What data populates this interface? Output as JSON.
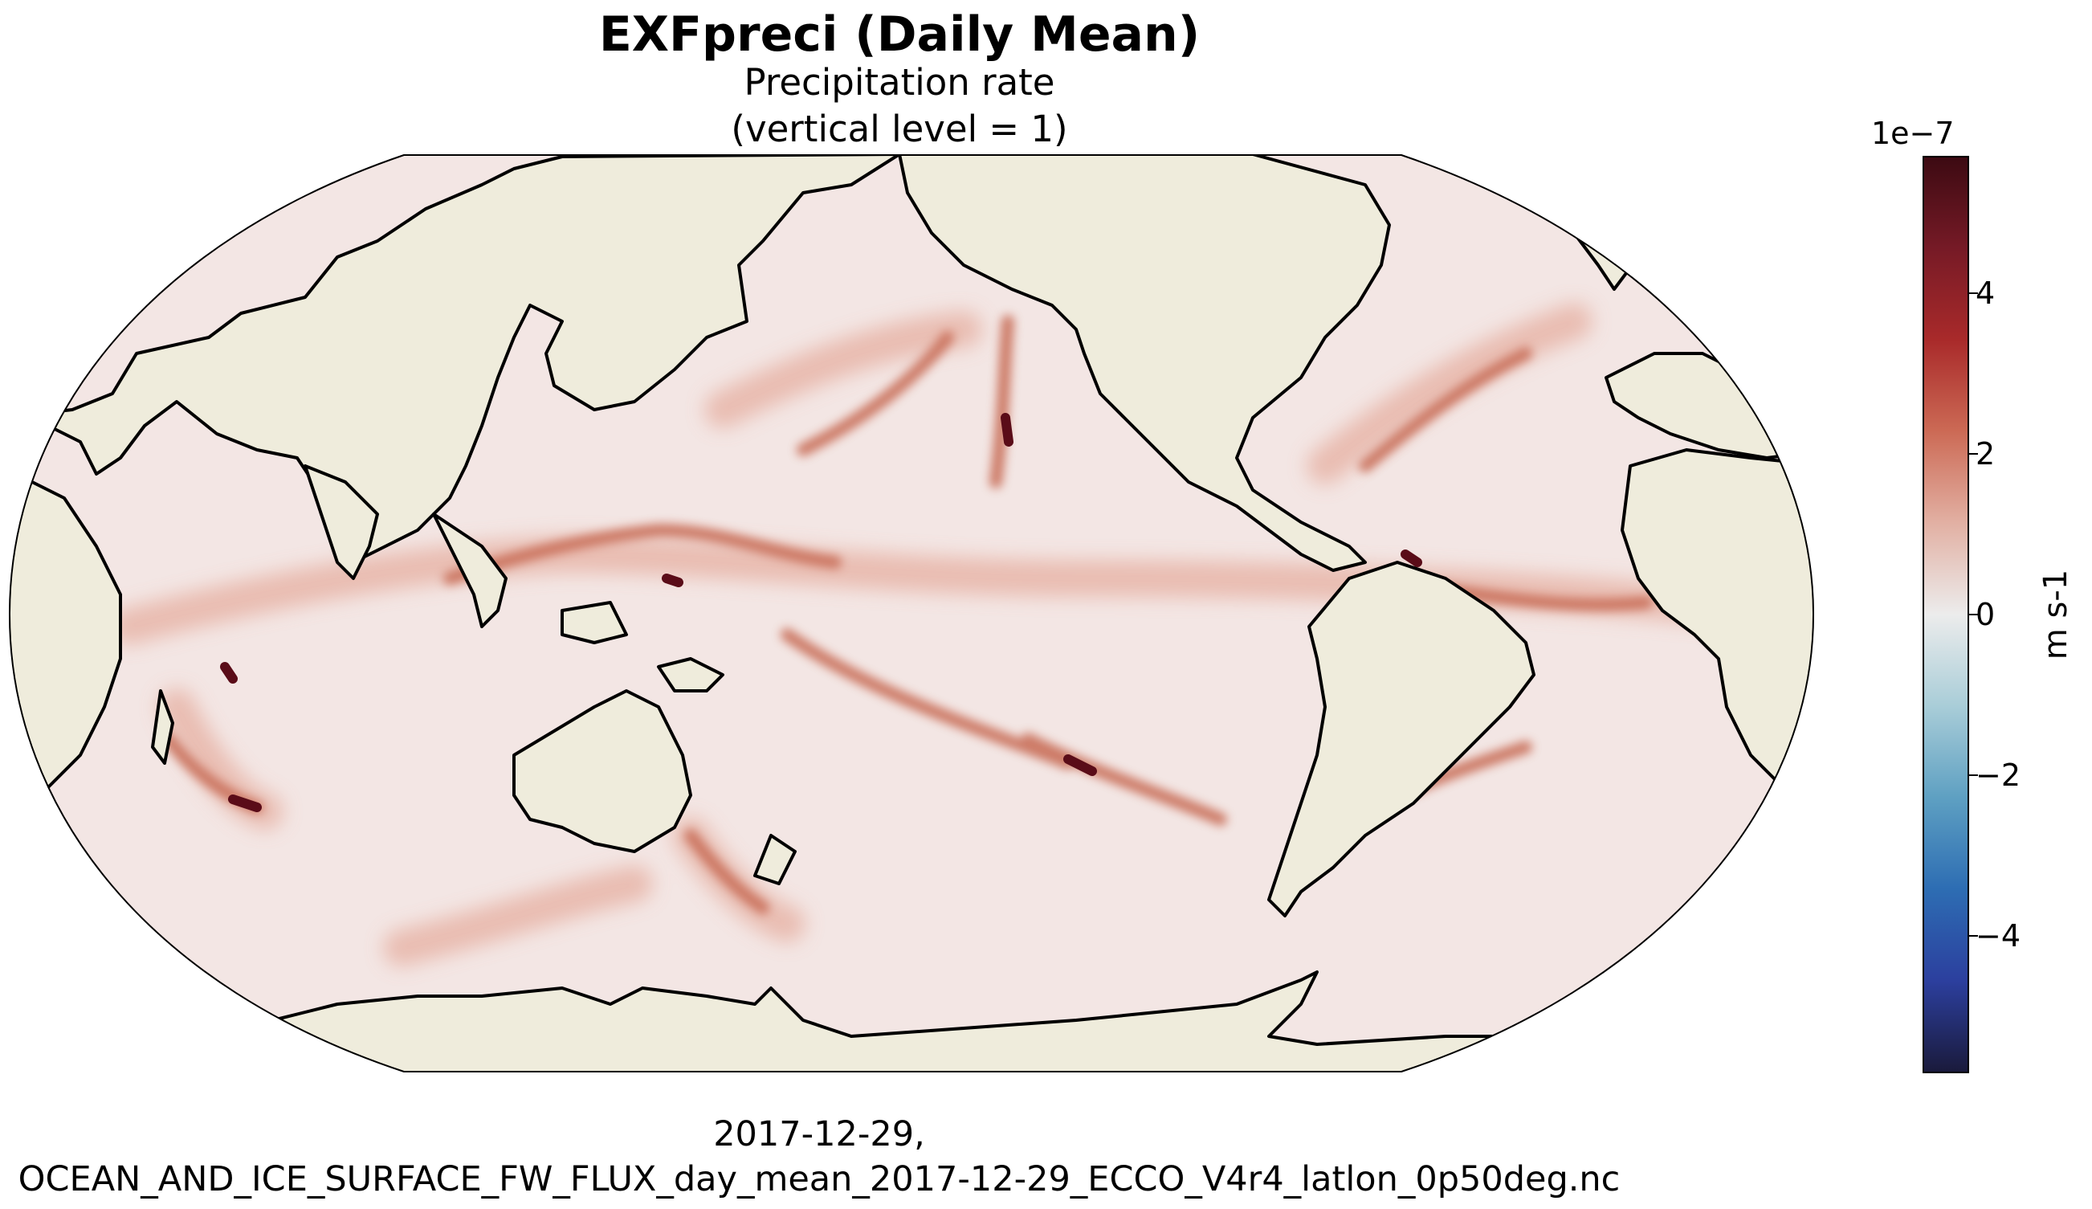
{
  "title": "EXFpreci (Daily Mean)",
  "subtitle_line1": "Precipitation rate",
  "subtitle_line2": "(vertical level = 1)",
  "footer_line1": "2017-12-29,",
  "footer_line2": "OCEAN_AND_ICE_SURFACE_FW_FLUX_day_mean_2017-12-29_ECCO_V4r4_latlon_0p50deg.nc",
  "map": {
    "projection": "Robinson",
    "central_longitude": 180,
    "land_color": "#efecdc",
    "ocean_base_color": "#f3e6e4",
    "coastline_color": "#000000"
  },
  "colorbar": {
    "exponent_label": "1e−7",
    "unit_label": "m s-1",
    "vmin": -5.7,
    "vmax": 5.7,
    "colormap": "balance",
    "ticks": [
      {
        "value": 4,
        "label": "4"
      },
      {
        "value": 2,
        "label": "2"
      },
      {
        "value": 0,
        "label": "0"
      },
      {
        "value": -2,
        "label": "−2"
      },
      {
        "value": -4,
        "label": "−4"
      }
    ],
    "colors": [
      "#1a1a3b",
      "#2c3f9e",
      "#2d6db3",
      "#5ea0c2",
      "#a9cdd8",
      "#ececec",
      "#e2b0a3",
      "#cc6a55",
      "#a92a2a",
      "#761a26",
      "#3c0a12"
    ]
  }
}
